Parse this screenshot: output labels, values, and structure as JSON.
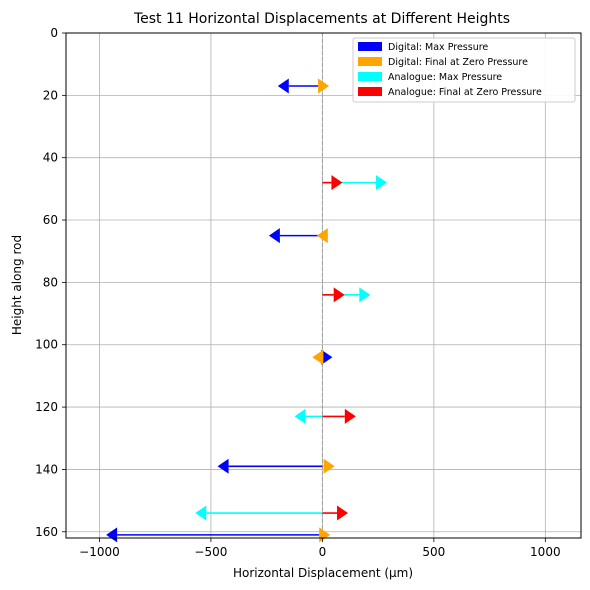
{
  "chart_data": {
    "type": "quiver",
    "title": "Test 11 Horizontal Displacements at Different Heights",
    "xlabel": "Horizontal Displacement (µm)",
    "ylabel": "Height along rod",
    "xlim": [
      -1150,
      1160
    ],
    "ylim": [
      162,
      0
    ],
    "y_inverted": true,
    "xticks": [
      -1000,
      -500,
      0,
      500,
      1000
    ],
    "yticks": [
      0,
      20,
      40,
      60,
      80,
      100,
      120,
      140,
      160
    ],
    "grid": true,
    "zero_line": {
      "x": 0,
      "style": "dashed",
      "color": "#999999"
    },
    "legend_position": "top-right",
    "series": [
      {
        "name": "Digital: Max Pressure",
        "color": "#0000ff",
        "arrows": [
          {
            "y": 17,
            "dx": -200
          },
          {
            "y": 65,
            "dx": -240
          },
          {
            "y": 104,
            "dx": 45
          },
          {
            "y": 139,
            "dx": -470
          },
          {
            "y": 161,
            "dx": -970
          }
        ]
      },
      {
        "name": "Digital: Final at Zero Pressure",
        "color": "#ffa500",
        "arrows": [
          {
            "y": 17,
            "dx": 30
          },
          {
            "y": 65,
            "dx": -25
          },
          {
            "y": 104,
            "dx": -45
          },
          {
            "y": 139,
            "dx": 55
          },
          {
            "y": 161,
            "dx": 35
          }
        ]
      },
      {
        "name": "Analogue: Max Pressure",
        "color": "#00ffff",
        "arrows": [
          {
            "y": 48,
            "dx": 290
          },
          {
            "y": 84,
            "dx": 215
          },
          {
            "y": 123,
            "dx": -125
          },
          {
            "y": 154,
            "dx": -570
          }
        ]
      },
      {
        "name": "Analogue: Final at Zero Pressure",
        "color": "#ff0000",
        "arrows": [
          {
            "y": 48,
            "dx": 90
          },
          {
            "y": 84,
            "dx": 100
          },
          {
            "y": 123,
            "dx": 150
          },
          {
            "y": 154,
            "dx": 115
          }
        ]
      }
    ]
  }
}
